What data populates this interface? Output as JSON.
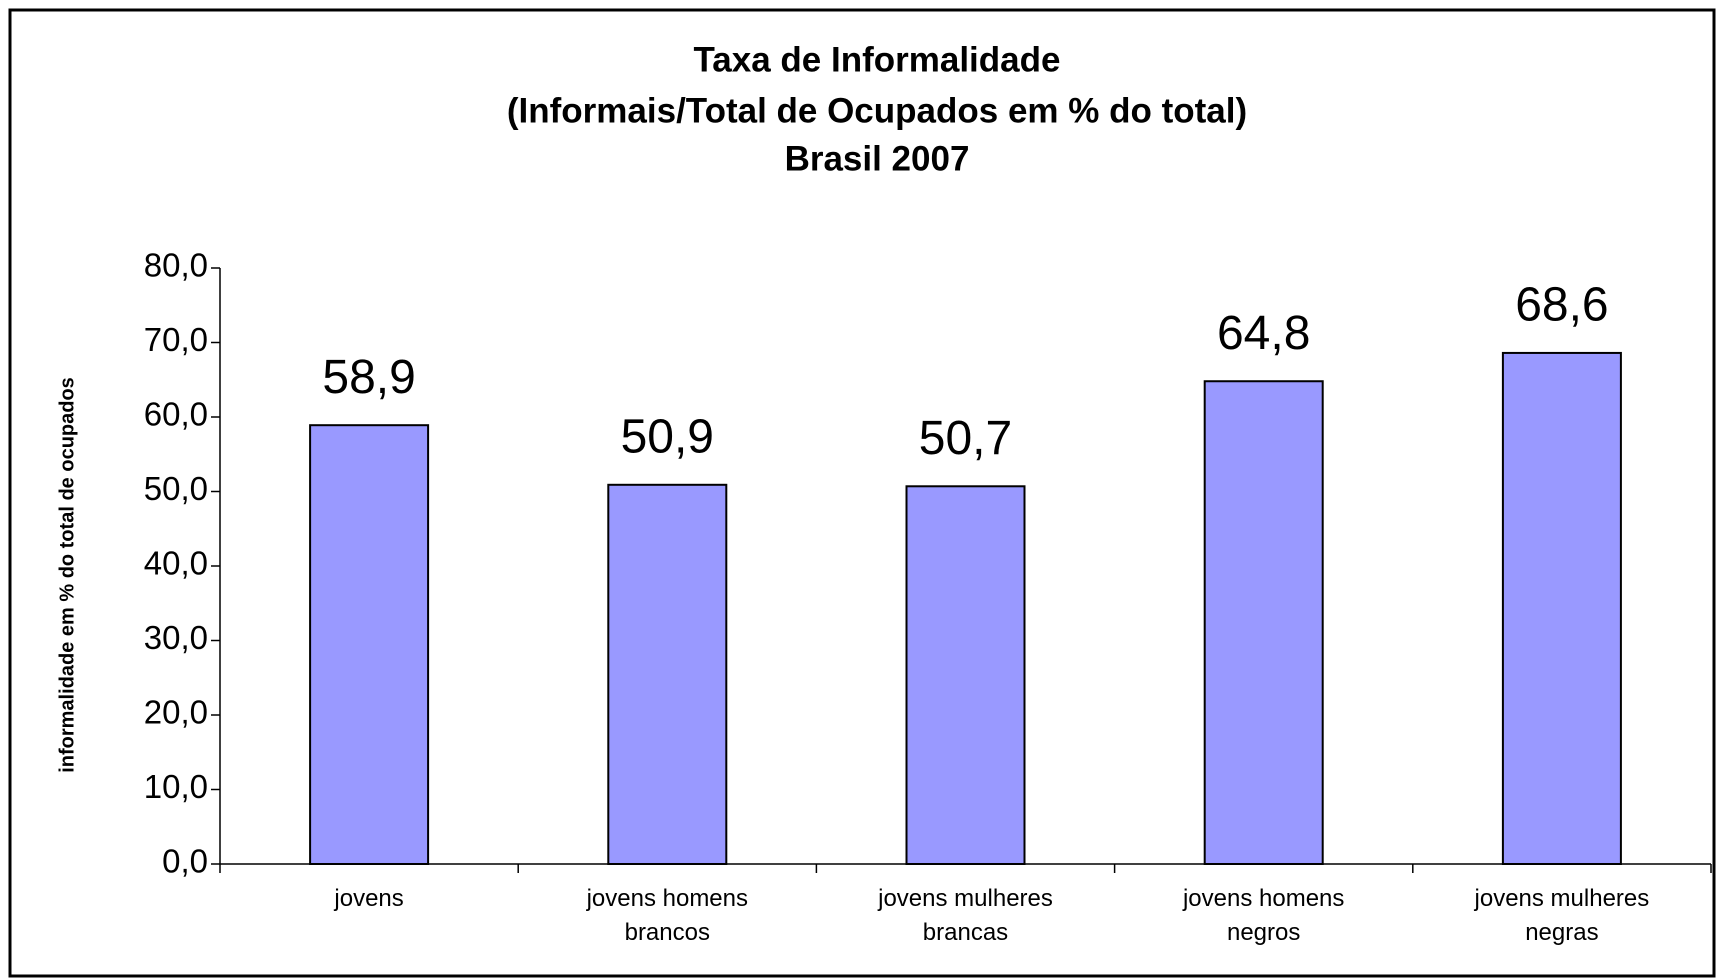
{
  "chart_data": {
    "type": "bar",
    "title": "Taxa de Informalidade",
    "subtitle": [
      "(Informais/Total de Ocupados em % do total)",
      "Brasil 2007"
    ],
    "y_label": "informalidade em % do total de ocupados",
    "categories": [
      "jovens",
      "jovens homens brancos",
      "jovens mulheres brancas",
      "jovens homens negros",
      "jovens mulheres negras"
    ],
    "values": [
      58.9,
      50.9,
      50.7,
      64.8,
      68.6
    ],
    "value_labels": [
      "58,9",
      "50,9",
      "50,7",
      "64,8",
      "68,6"
    ],
    "color": "#9999ff",
    "ylim": [
      0,
      80
    ],
    "yticks": [
      {
        "value": 0,
        "label": "0,0"
      },
      {
        "value": 10,
        "label": "10,0"
      },
      {
        "value": 20,
        "label": "20,0"
      },
      {
        "value": 30,
        "label": "30,0"
      },
      {
        "value": 40,
        "label": "40,0"
      },
      {
        "value": 50,
        "label": "50,0"
      },
      {
        "value": 60,
        "label": "60,0"
      },
      {
        "value": 70,
        "label": "70,0"
      },
      {
        "value": 80,
        "label": "80,0"
      }
    ],
    "grid": false
  }
}
